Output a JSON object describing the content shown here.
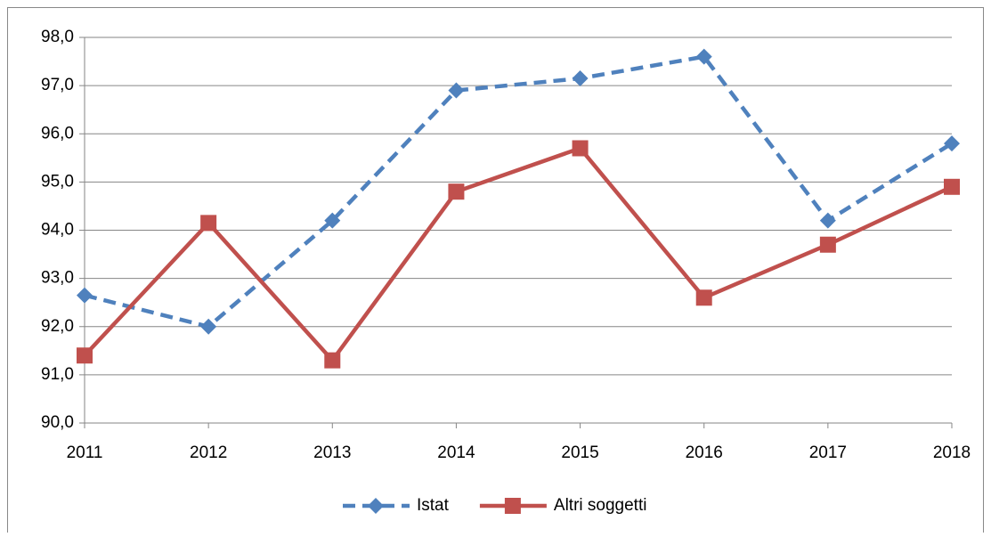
{
  "chart_data": {
    "type": "line",
    "categories": [
      "2011",
      "2012",
      "2013",
      "2014",
      "2015",
      "2016",
      "2017",
      "2018"
    ],
    "series": [
      {
        "name": "Istat",
        "color": "#4f81bd",
        "dash": true,
        "marker": "diamond",
        "values": [
          92.65,
          92.0,
          94.2,
          96.9,
          97.15,
          97.6,
          94.2,
          95.8
        ]
      },
      {
        "name": "Altri soggetti",
        "color": "#c0504d",
        "dash": false,
        "marker": "square",
        "values": [
          91.4,
          94.15,
          91.3,
          94.8,
          95.7,
          92.6,
          93.7,
          94.9
        ]
      }
    ],
    "ylim": [
      90,
      98
    ],
    "yticks": [
      {
        "value": 90,
        "label": "90,0"
      },
      {
        "value": 91,
        "label": "91,0"
      },
      {
        "value": 92,
        "label": "92,0"
      },
      {
        "value": 93,
        "label": "93,0"
      },
      {
        "value": 94,
        "label": "94,0"
      },
      {
        "value": 95,
        "label": "95,0"
      },
      {
        "value": 96,
        "label": "96,0"
      },
      {
        "value": 97,
        "label": "97,0"
      },
      {
        "value": 98,
        "label": "98,0"
      }
    ],
    "grid": true,
    "legend": "bottom"
  }
}
